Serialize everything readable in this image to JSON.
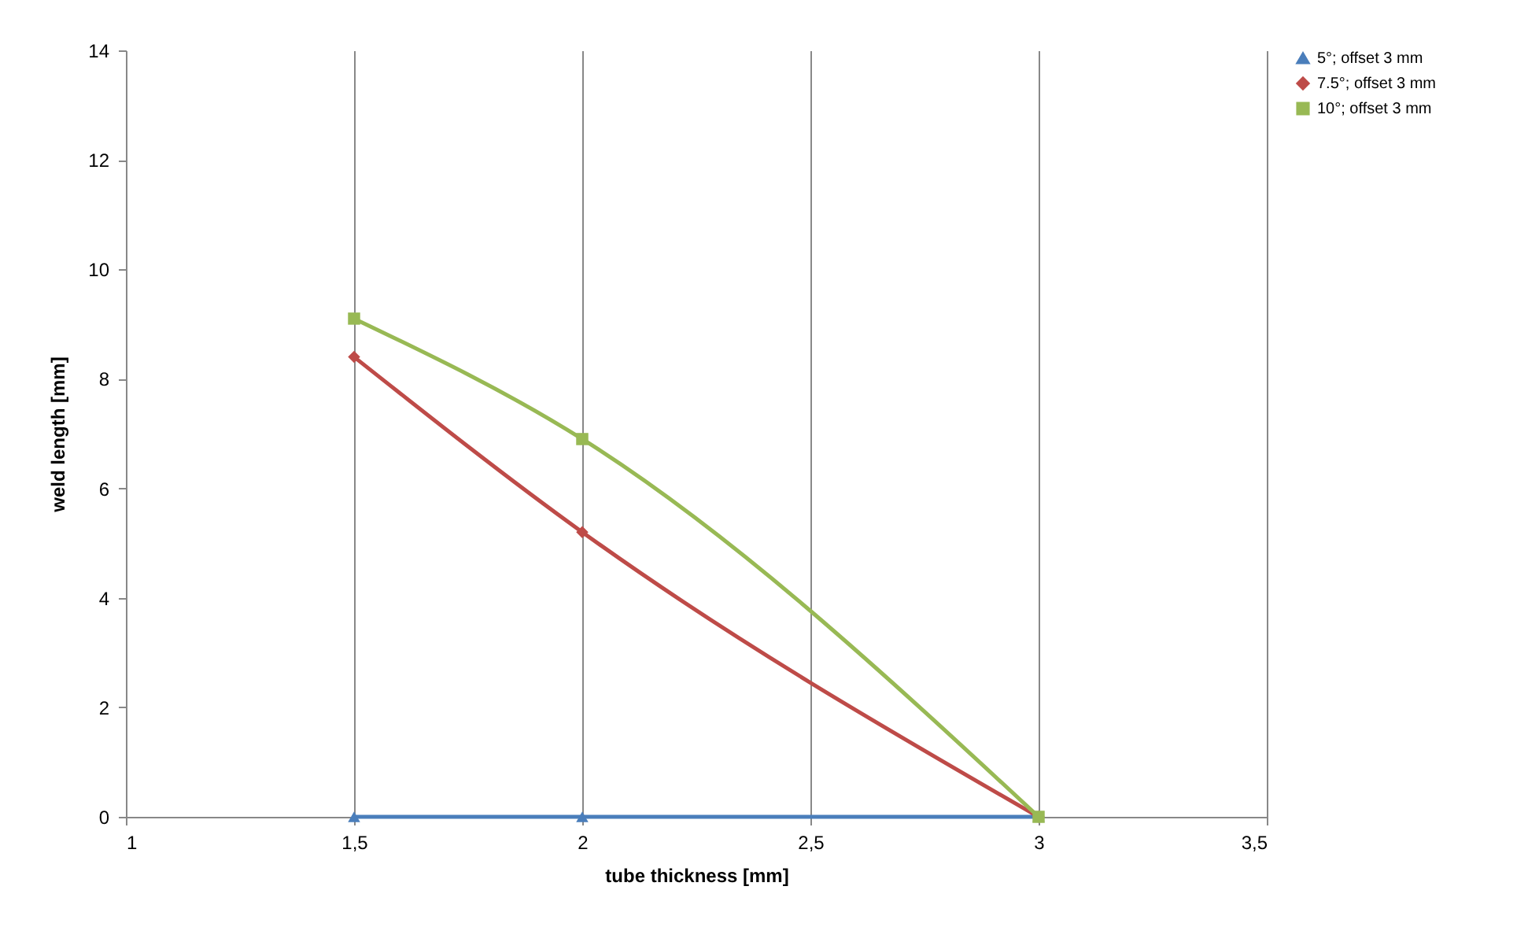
{
  "chart_data": {
    "type": "line",
    "xlabel": "tube thickness [mm]",
    "ylabel": "weld length [mm]",
    "x": [
      1.5,
      2,
      3
    ],
    "series": [
      {
        "name": "5°; offset 3 mm",
        "color": "#4a7ebb",
        "marker": "triangle",
        "values": [
          0,
          0,
          0
        ]
      },
      {
        "name": "7.5°; offset 3 mm",
        "color": "#be4b48",
        "marker": "diamond",
        "values": [
          8.4,
          5.2,
          0
        ]
      },
      {
        "name": "10°; offset 3 mm",
        "color": "#98b954",
        "marker": "square",
        "values": [
          9.1,
          6.9,
          0
        ]
      }
    ],
    "xlim": [
      1,
      3.5
    ],
    "xticks": [
      1,
      {
        "value": 1.5,
        "label": "1,5"
      },
      2,
      {
        "value": 2.5,
        "label": "2,5"
      },
      3,
      {
        "value": 3.5,
        "label": "3,5"
      }
    ],
    "ylim": [
      0,
      14
    ],
    "yticks": [
      0,
      2,
      4,
      6,
      8,
      10,
      12,
      14
    ],
    "grid": "x",
    "legend": "right",
    "line_style": "solid"
  }
}
